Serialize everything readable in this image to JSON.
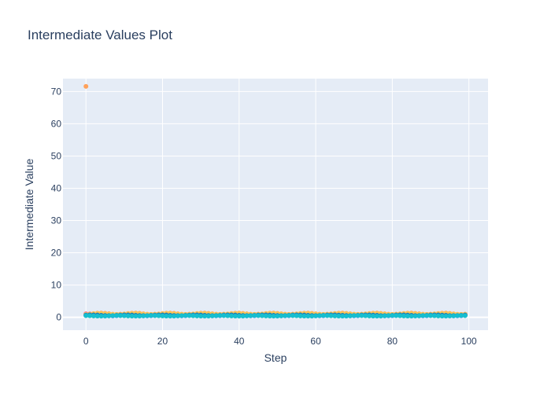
{
  "chart_data": {
    "type": "scatter",
    "title": "Intermediate Values Plot",
    "xlabel": "Step",
    "ylabel": "Intermediate Value",
    "xlim": [
      -6,
      105
    ],
    "ylim": [
      -4,
      74
    ],
    "xticks": [
      0,
      20,
      40,
      60,
      80,
      100
    ],
    "yticks": [
      0,
      10,
      20,
      30,
      40,
      50,
      60,
      70
    ],
    "grid": true,
    "legend": "none",
    "colors": {
      "plot_bg": "#e5ecf6",
      "grid": "#ffffff",
      "text": "#2a3f5f",
      "series": [
        "#636efa",
        "#ef553b",
        "#00cc96",
        "#ab63fa",
        "#ffa15a",
        "#19d3f3",
        "#ff6692",
        "#b6e880",
        "#ff97ff",
        "#fecb52",
        "#1f77b4",
        "#17becf"
      ]
    },
    "outlier": {
      "x": 0,
      "y": 71.6,
      "color": "#ffa15a"
    },
    "series": [
      {
        "base": 0.55,
        "amp": 0.12,
        "start": 0,
        "end": 99
      },
      {
        "base": 0.75,
        "amp": 0.18,
        "start": 0,
        "end": 99
      },
      {
        "base": 0.5,
        "amp": 0.1,
        "start": 0,
        "end": 99
      },
      {
        "base": 0.85,
        "amp": 0.15,
        "start": 0,
        "end": 4
      },
      {
        "base": 1.1,
        "amp": 0.2,
        "start": 0,
        "end": 99
      },
      {
        "base": 0.6,
        "amp": 0.1,
        "start": 0,
        "end": 99
      },
      {
        "base": 0.9,
        "amp": 0.2,
        "start": 0,
        "end": 3
      },
      {
        "base": 0.7,
        "amp": 0.15,
        "start": 0,
        "end": 8
      },
      {
        "base": 0.8,
        "amp": 0.1,
        "start": 0,
        "end": 3
      },
      {
        "base": 1.0,
        "amp": 0.15,
        "start": 0,
        "end": 99
      },
      {
        "base": 0.65,
        "amp": 0.12,
        "start": 0,
        "end": 99
      },
      {
        "base": 0.45,
        "amp": 0.1,
        "start": 0,
        "end": 99
      }
    ]
  }
}
